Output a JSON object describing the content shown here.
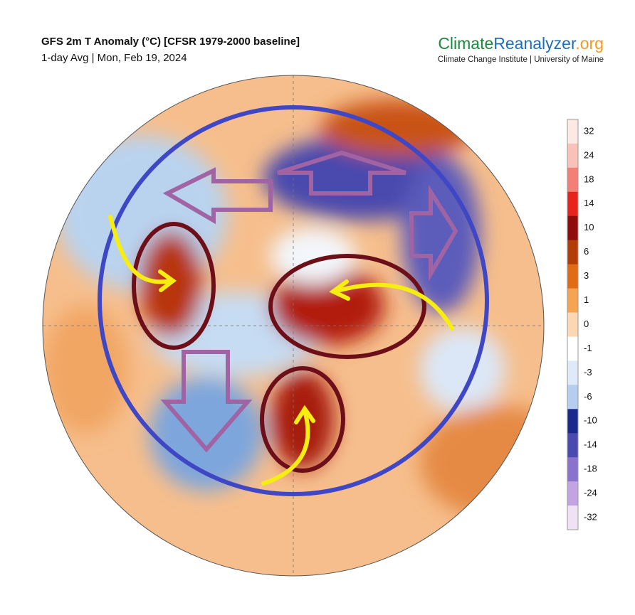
{
  "header": {
    "title": "GFS 2m T Anomaly (°C) [CFSR 1979-2000 baseline]",
    "subtitle": "1-day Avg | Mon, Feb 19, 2024"
  },
  "logo": {
    "parts": [
      "Climate",
      "Reanalyzer",
      ".org"
    ],
    "tagline": "Climate Change Institute | University of Maine"
  },
  "colorbar": {
    "ticks": [
      32,
      24,
      18,
      14,
      10,
      6,
      3,
      1,
      0,
      -1,
      -3,
      -6,
      -10,
      -14,
      -18,
      -24,
      -32
    ]
  }
}
